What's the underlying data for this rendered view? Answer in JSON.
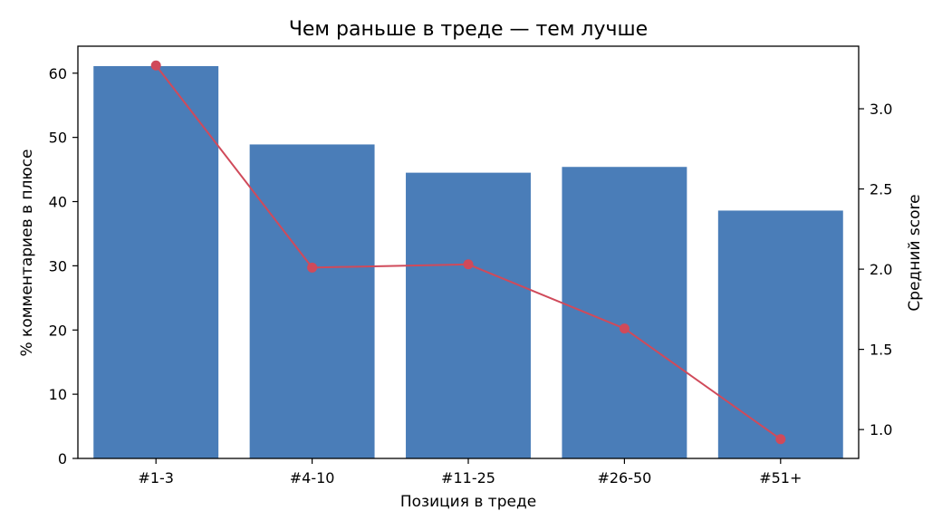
{
  "chart_data": {
    "type": "bar+line",
    "title": "Чем раньше в треде — тем лучше",
    "xlabel": "Позиция в треде",
    "ylabel_left": "% комментариев в плюсе",
    "ylabel_right": "Средний score",
    "categories": [
      "#1-3",
      "#4-10",
      "#11-25",
      "#26-50",
      "#51+"
    ],
    "series": [
      {
        "kind": "bar",
        "axis": "left",
        "color": "#4a7db8",
        "values": [
          61.1,
          48.9,
          44.5,
          45.4,
          38.6
        ]
      },
      {
        "kind": "line",
        "axis": "right",
        "color": "#d04a5a",
        "marker": "circle",
        "values": [
          3.27,
          2.01,
          2.03,
          1.63,
          0.94
        ]
      }
    ],
    "ylim_left": [
      0,
      64.2
    ],
    "yticks_left": [
      0,
      10,
      20,
      30,
      40,
      50,
      60
    ],
    "ylim_right": [
      0.82,
      3.39
    ],
    "yticks_right": [
      "1.0",
      "1.5",
      "2.0",
      "2.5",
      "3.0"
    ],
    "grid": false
  }
}
